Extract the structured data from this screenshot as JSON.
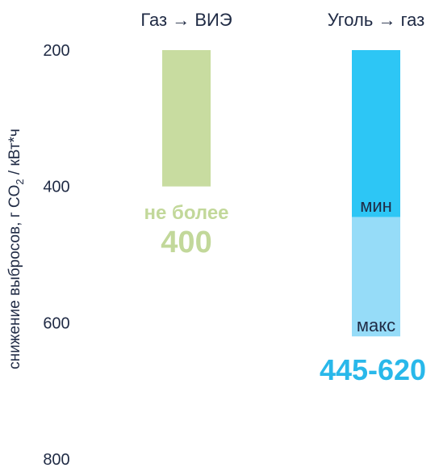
{
  "chart_data": {
    "type": "bar",
    "orientation": "floating-range",
    "ylabel_main": "снижение выбросов, г CO",
    "ylabel_sub": "2",
    "ylabel_tail": " / кВт*ч",
    "ylim": [
      200,
      800
    ],
    "y_inverted": true,
    "y_ticks": [
      200,
      400,
      600,
      800
    ],
    "grid": false,
    "categories": [
      "Газ → ВИЭ",
      "Уголь → газ"
    ],
    "series": [
      {
        "category": "Газ → ВИЭ",
        "segments": [
          {
            "from": 200,
            "to": 400,
            "color": "#c8dca0"
          }
        ],
        "label_top": "не более",
        "label_big": "400",
        "label_color": "#c2d89a"
      },
      {
        "category": "Уголь → газ",
        "segments": [
          {
            "from": 200,
            "to": 445,
            "color": "#2dc6f5"
          },
          {
            "from": 445,
            "to": 620,
            "color": "#96dcf8"
          }
        ],
        "min_label": "мин",
        "max_label": "макс",
        "label_big": "445-620",
        "label_color": "#29b8ea"
      }
    ],
    "text_color": "#1f2a44"
  }
}
